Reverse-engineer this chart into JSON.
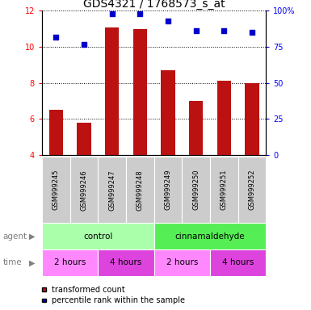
{
  "title": "GDS4321 / 1768573_s_at",
  "samples": [
    "GSM999245",
    "GSM999246",
    "GSM999247",
    "GSM999248",
    "GSM999249",
    "GSM999250",
    "GSM999251",
    "GSM999252"
  ],
  "bar_values": [
    6.5,
    5.8,
    11.1,
    11.0,
    8.7,
    7.0,
    8.1,
    8.0
  ],
  "percentile_values": [
    82,
    77,
    98,
    98,
    93,
    86,
    86,
    85
  ],
  "ylim": [
    4,
    12
  ],
  "yticks": [
    4,
    6,
    8,
    10,
    12
  ],
  "right_yticks": [
    0,
    25,
    50,
    75,
    100
  ],
  "right_ylim": [
    0,
    100
  ],
  "bar_color": "#bb1111",
  "dot_color": "#0000cc",
  "bar_width": 0.5,
  "agent_labels": [
    "control",
    "cinnamaldehyde"
  ],
  "agent_color_control": "#aaffaa",
  "agent_color_cinna": "#55ee55",
  "time_labels": [
    "2 hours",
    "4 hours",
    "2 hours",
    "4 hours"
  ],
  "time_color_2h": "#ff88ff",
  "time_color_4h": "#dd44dd",
  "sample_bg_color": "#cccccc",
  "legend_items": [
    "transformed count",
    "percentile rank within the sample"
  ],
  "legend_colors": [
    "#bb1111",
    "#0000cc"
  ],
  "title_fontsize": 10,
  "tick_fontsize": 7,
  "sample_fontsize": 6,
  "row_fontsize": 7.5,
  "legend_fontsize": 7
}
